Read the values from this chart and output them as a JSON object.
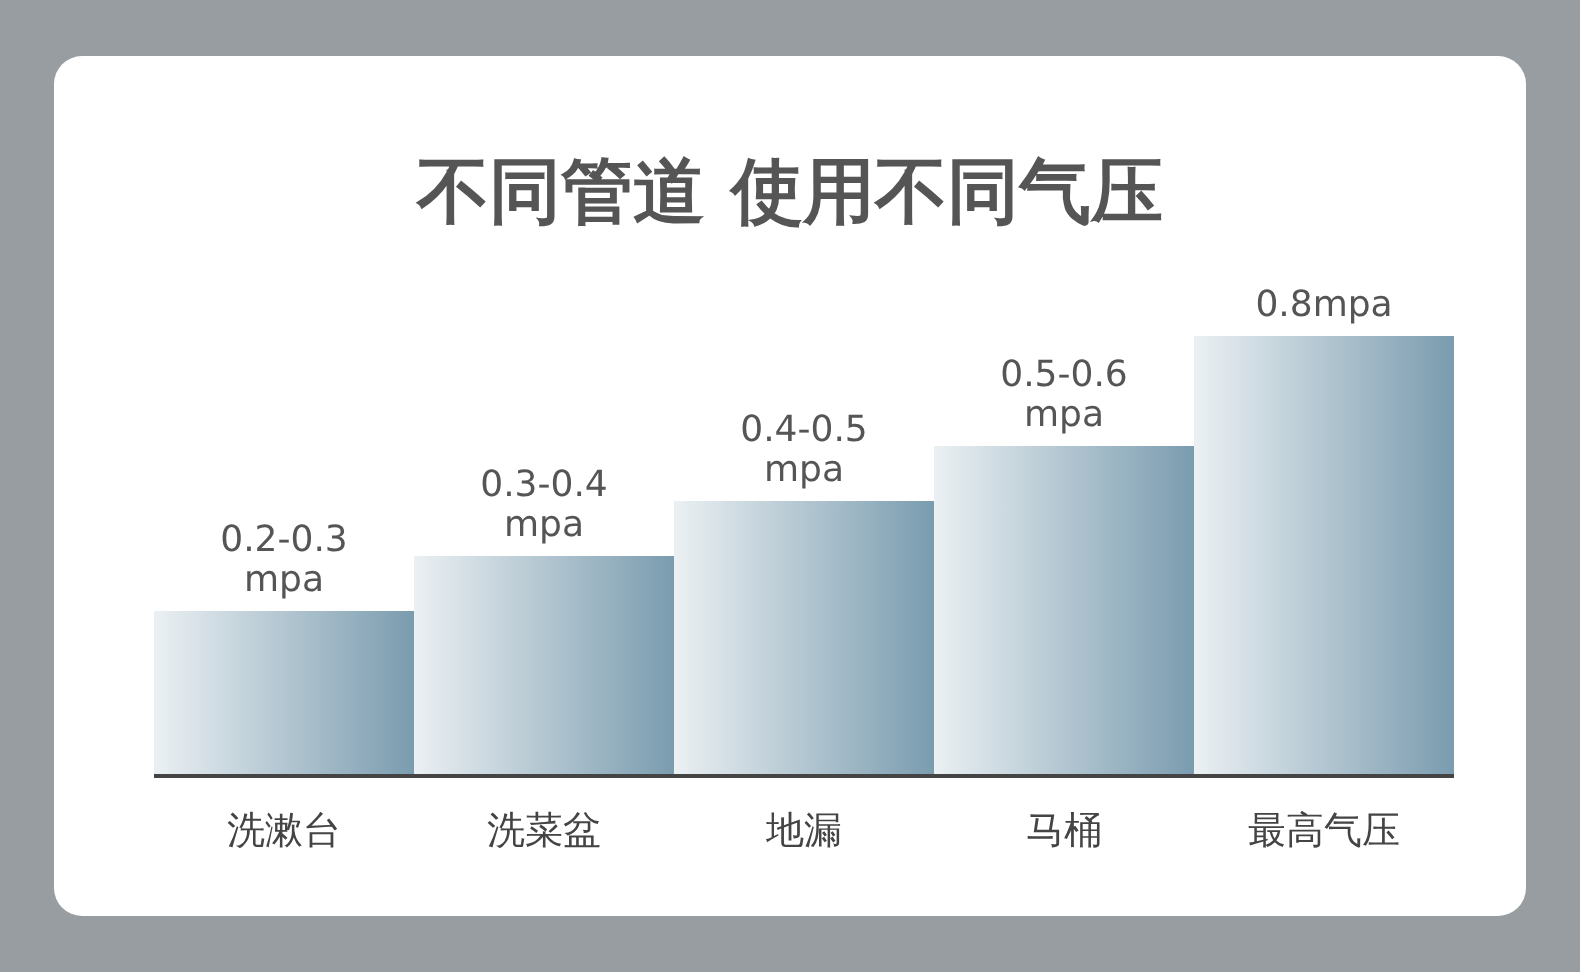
{
  "chart_data": {
    "type": "bar",
    "title": "不同管道 使用不同气压",
    "categories": [
      "洗漱台",
      "洗菜盆",
      "地漏",
      "马桶",
      "最高气压"
    ],
    "values": [
      0.3,
      0.4,
      0.5,
      0.6,
      0.8
    ],
    "value_labels": [
      "0.2-0.3 mpa",
      "0.3-0.4 mpa",
      "0.4-0.5 mpa",
      "0.5-0.6 mpa",
      "0.8mpa"
    ],
    "color": "#7a9caf",
    "grid": false,
    "legend": false
  }
}
